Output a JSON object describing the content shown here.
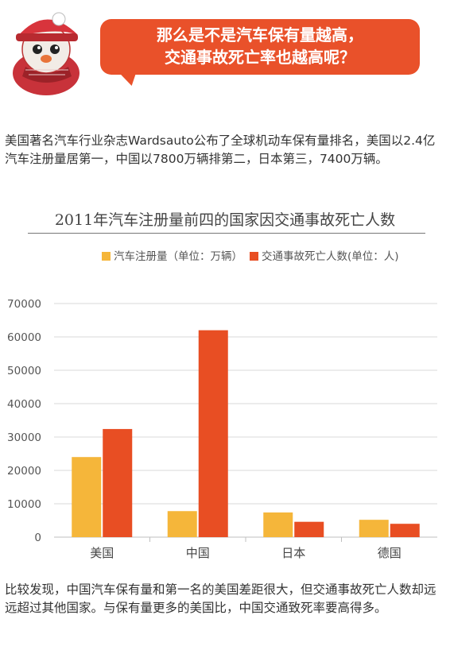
{
  "header": {
    "bubble_line1": "那么是不是汽车保有量越高，",
    "bubble_line2": "交通事故死亡率也越高呢？",
    "mascot_icon": "snowman-mascot-icon"
  },
  "intro_text": "美国著名汽车行业杂志Wardsauto公布了全球机动车保有量排名，美国以2.4亿汽车注册量居第一，中国以7800万辆排第二，日本第三，7400万辆。",
  "conclusion_text": "比较发现，中国汽车保有量和第一名的美国差距很大，但交通事故死亡人数却远远超过其他国家。与保有量更多的美国比，中国交通致死率要高得多。",
  "colors": {
    "accent": "#e9512a",
    "series_registrations": "#f5b63a",
    "series_deaths": "#e84e23"
  },
  "chart_data": {
    "type": "bar",
    "title": "2011年汽车注册量前四的国家因交通事故死亡人数",
    "categories": [
      "美国",
      "中国",
      "日本",
      "德国"
    ],
    "series": [
      {
        "name": "汽车注册量（单位：万辆）",
        "values": [
          24000,
          7800,
          7400,
          5200
        ]
      },
      {
        "name": "交通事故死亡人数(单位：人)",
        "values": [
          32400,
          62000,
          4600,
          4000
        ]
      }
    ],
    "ylim": [
      0,
      70000
    ],
    "yticks": [
      0,
      10000,
      20000,
      30000,
      40000,
      50000,
      60000,
      70000
    ],
    "grid": true,
    "legend": "top"
  }
}
